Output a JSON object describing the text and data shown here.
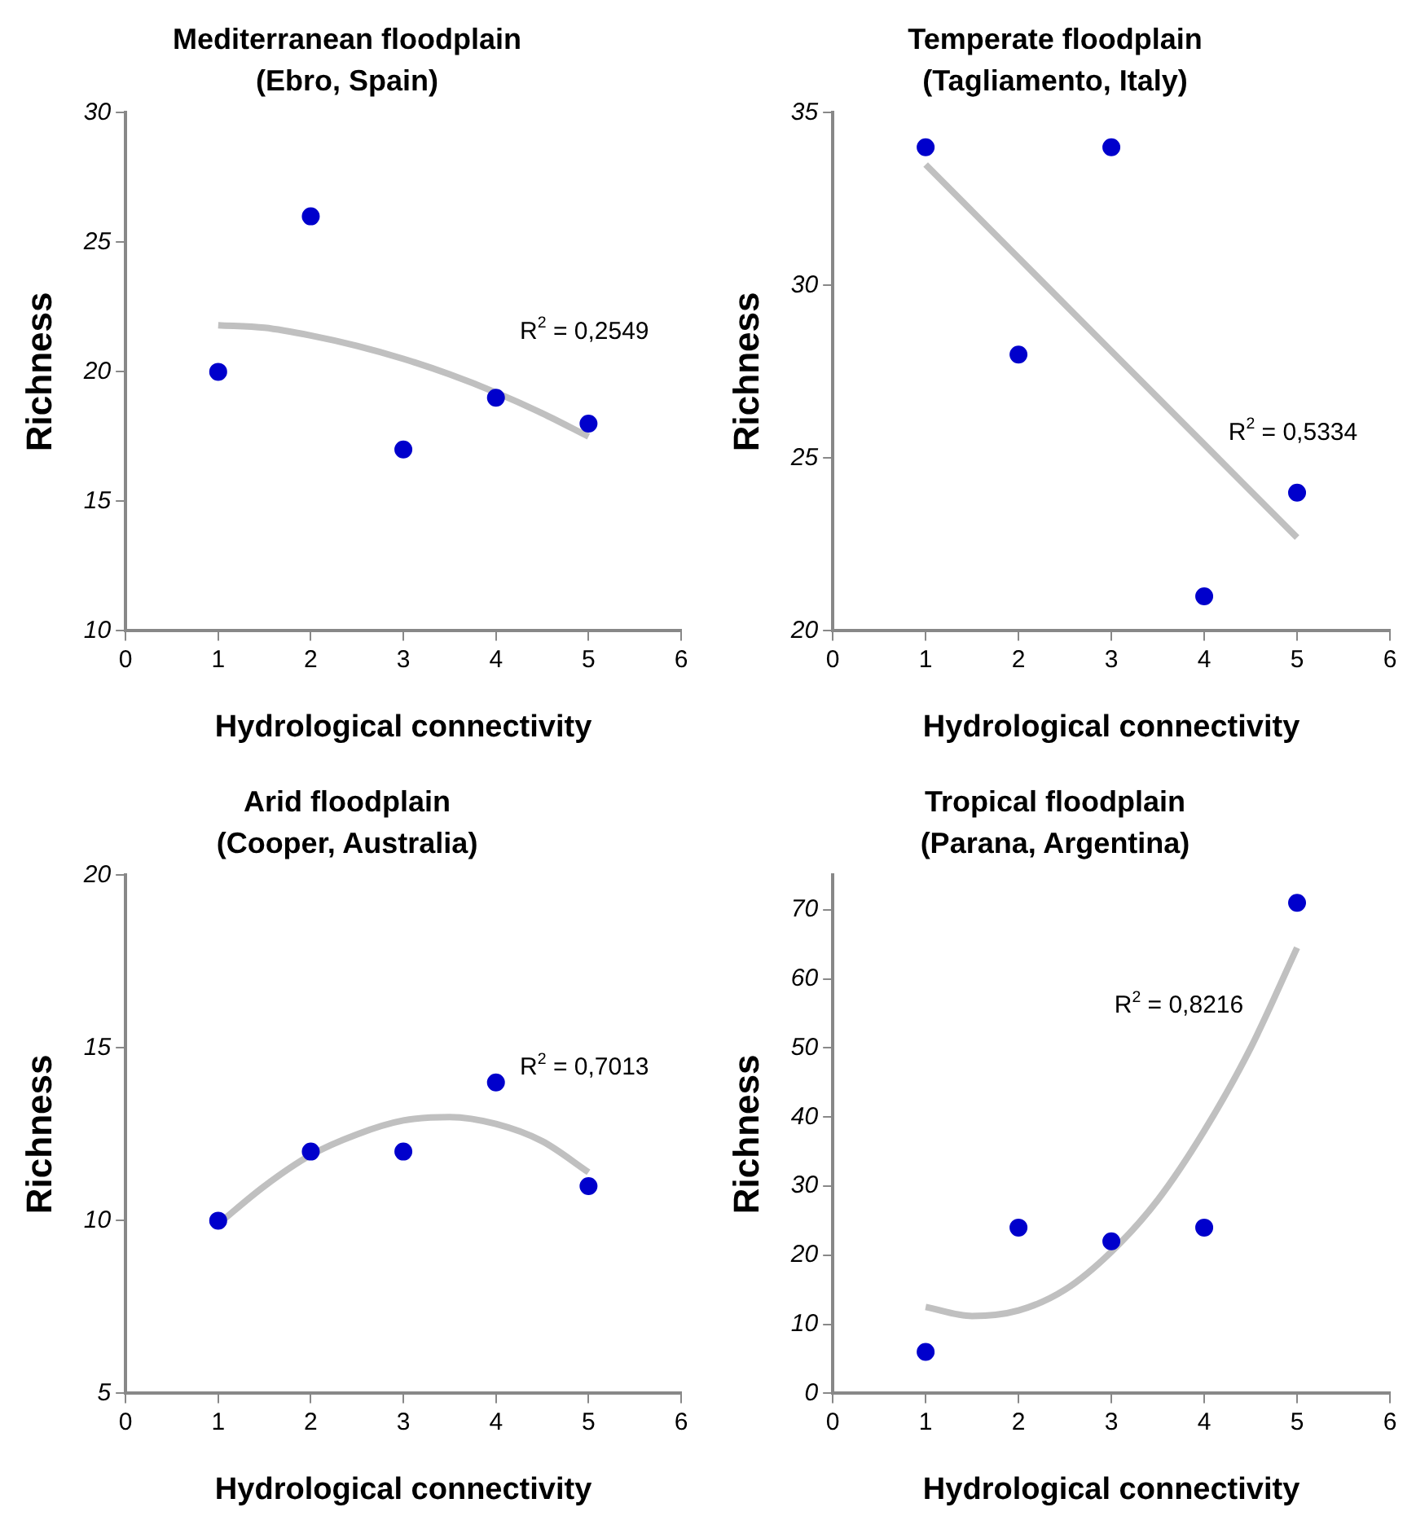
{
  "chart_data": [
    {
      "type": "scatter",
      "title": "Mediterranean floodplain",
      "subtitle": "(Ebro, Spain)",
      "xlabel": "Hydrological connectivity",
      "ylabel": "Richness",
      "x": [
        1,
        2,
        3,
        4,
        5
      ],
      "xlim": [
        0,
        6
      ],
      "xticks": [
        0,
        1,
        2,
        3,
        4,
        5,
        6
      ],
      "ylim": [
        10,
        30
      ],
      "yticks": [
        10,
        15,
        20,
        25,
        30
      ],
      "grid": false,
      "legend": false,
      "marker": "circle",
      "series": [
        {
          "color": "#0000cc",
          "values": [
            20,
            26,
            17,
            19,
            18
          ]
        },
        {
          "type": "line",
          "color": "#c0c0c0",
          "marker": "none",
          "x": [
            1,
            1.5,
            2,
            2.5,
            3,
            3.5,
            4,
            4.5,
            5
          ],
          "values": [
            21.8,
            21.7,
            21.4,
            21.0,
            20.5,
            19.9,
            19.2,
            18.4,
            17.5
          ]
        }
      ],
      "annotations": [
        "R$^{2}$ = 0,2549"
      ]
    },
    {
      "type": "scatter",
      "title": "Temperate floodplain",
      "subtitle": "(Tagliamento, Italy)",
      "xlabel": "Hydrological connectivity",
      "ylabel": "Richness",
      "x": [
        1,
        2,
        3,
        4,
        5
      ],
      "xlim": [
        0,
        6
      ],
      "xticks": [
        0,
        1,
        2,
        3,
        4,
        5,
        6
      ],
      "ylim": [
        20,
        35
      ],
      "yticks": [
        20,
        25,
        30,
        35
      ],
      "grid": false,
      "legend": false,
      "marker": "circle",
      "series": [
        {
          "color": "#0000cc",
          "values": [
            34,
            28,
            34,
            21,
            24
          ]
        },
        {
          "type": "line",
          "color": "#c0c0c0",
          "marker": "none",
          "x": [
            1,
            2,
            3,
            4,
            5
          ],
          "values": [
            33.5,
            30.8,
            28.1,
            25.4,
            22.7
          ]
        }
      ],
      "annotations": [
        "R$^{2}$ = 0,5334"
      ]
    },
    {
      "type": "scatter",
      "title": "Arid floodplain",
      "subtitle": "(Cooper, Australia)",
      "xlabel": "Hydrological connectivity",
      "ylabel": "Richness",
      "x": [
        1,
        2,
        3,
        4,
        5
      ],
      "xlim": [
        0,
        6
      ],
      "xticks": [
        0,
        1,
        2,
        3,
        4,
        5,
        6
      ],
      "ylim": [
        5,
        20
      ],
      "yticks": [
        5,
        10,
        15,
        20
      ],
      "grid": false,
      "legend": false,
      "marker": "circle",
      "series": [
        {
          "color": "#0000cc",
          "values": [
            10,
            12,
            12,
            14,
            11
          ]
        },
        {
          "type": "line",
          "color": "#c0c0c0",
          "marker": "none",
          "x": [
            1,
            1.5,
            2,
            2.5,
            3,
            3.5,
            4,
            4.5,
            5
          ],
          "values": [
            9.9,
            11.0,
            11.9,
            12.5,
            12.9,
            13.0,
            12.8,
            12.3,
            11.4
          ]
        }
      ],
      "annotations": [
        "R$^{2}$ = 0,7013"
      ]
    },
    {
      "type": "scatter",
      "title": "Tropical floodplain",
      "subtitle": "(Parana, Argentina)",
      "xlabel": "Hydrological connectivity",
      "ylabel": "Richness",
      "x": [
        1,
        2,
        3,
        4,
        5
      ],
      "xlim": [
        0,
        6
      ],
      "xticks": [
        0,
        1,
        2,
        3,
        4,
        5,
        6
      ],
      "ylim": [
        0,
        75
      ],
      "yticks": [
        0,
        10,
        20,
        30,
        40,
        50,
        60,
        70
      ],
      "grid": false,
      "legend": false,
      "marker": "circle",
      "series": [
        {
          "color": "#0000cc",
          "values": [
            6,
            24,
            22,
            24,
            71
          ]
        },
        {
          "type": "line",
          "color": "#c0c0c0",
          "marker": "none",
          "x": [
            1,
            1.5,
            2,
            2.5,
            3,
            3.5,
            4,
            4.5,
            5
          ],
          "values": [
            12.5,
            11.2,
            12,
            15,
            20.5,
            28,
            38,
            50,
            64.5
          ]
        }
      ],
      "annotations": [
        "R$^{2}$ = 0,8216"
      ]
    }
  ]
}
